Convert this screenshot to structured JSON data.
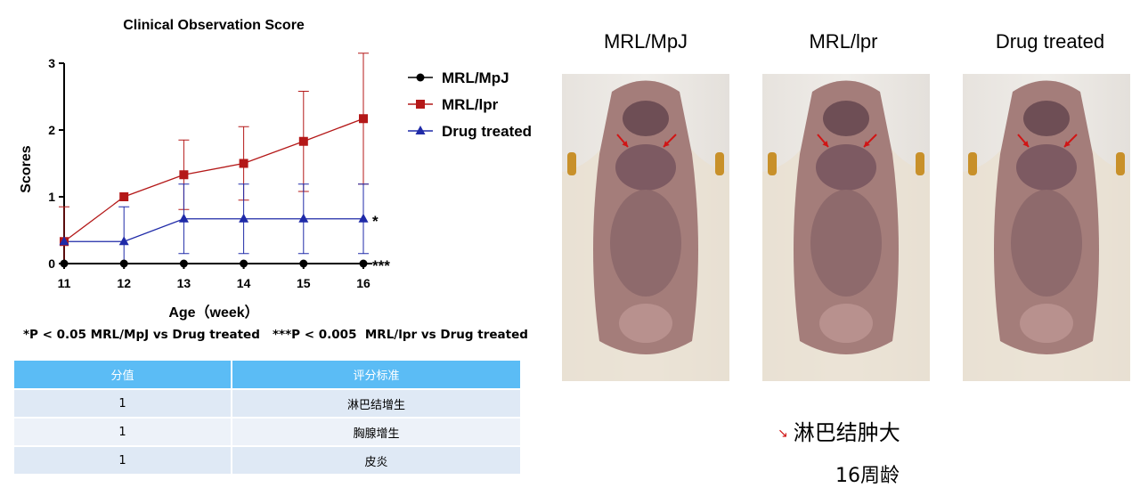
{
  "chart_data": {
    "type": "line",
    "title": "Clinical Observation Score",
    "xlabel": "Age（week）",
    "ylabel": "Scores",
    "x": [
      11,
      12,
      13,
      14,
      15,
      16
    ],
    "xlim": [
      11,
      16
    ],
    "ylim": [
      0,
      3
    ],
    "yticks": [
      0,
      1,
      2,
      3
    ],
    "grid": false,
    "legend_position": "right",
    "series": [
      {
        "name": "MRL/MpJ",
        "marker": "circle",
        "color": "#000000",
        "values": [
          0,
          0,
          0,
          0,
          0,
          0
        ],
        "error": [
          0,
          0,
          0,
          0,
          0,
          0
        ],
        "annotation": "***"
      },
      {
        "name": "MRL/lpr",
        "marker": "square",
        "color": "#b41818",
        "values": [
          0.33,
          1.0,
          1.33,
          1.5,
          1.83,
          2.17
        ],
        "error": [
          0.52,
          0,
          0.52,
          0.55,
          0.75,
          0.98
        ]
      },
      {
        "name": "Drug treated",
        "marker": "triangle",
        "color": "#1f2aa8",
        "values": [
          0.33,
          0.33,
          0.67,
          0.67,
          0.67,
          0.67
        ],
        "error": [
          0,
          0.52,
          0.52,
          0.52,
          0.52,
          0.52
        ],
        "annotation": "*"
      }
    ]
  },
  "footnote": "*P < 0.05 MRL/MpJ vs Drug treated   ***P < 0.005  MRL/lpr vs Drug treated",
  "score_table": {
    "headers": [
      "分值",
      "评分标准"
    ],
    "rows": [
      {
        "score": "1",
        "criteria": "淋巴结增生"
      },
      {
        "score": "1",
        "criteria": "胸腺增生"
      },
      {
        "score": "1",
        "criteria": "皮炎"
      }
    ]
  },
  "panels": {
    "titles": [
      "MRL/MpJ",
      "MRL/lpr",
      "Drug treated"
    ],
    "arrow_color": "#d01515"
  },
  "legend_note": {
    "arrow_icon": "red-arrow-icon",
    "text": "淋巴结肿大"
  },
  "age_note": "16周龄"
}
